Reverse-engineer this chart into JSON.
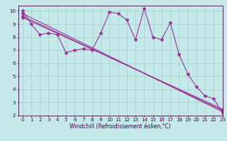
{
  "line_color": "#993399",
  "bg_color": "#c5e8e8",
  "grid_color": "#a0cccc",
  "xlabel": "Windchill (Refroidissement éolien,°C)",
  "xlim": [
    -0.5,
    23
  ],
  "ylim": [
    2,
    10.4
  ],
  "xticks": [
    0,
    1,
    2,
    3,
    4,
    5,
    6,
    7,
    8,
    9,
    10,
    11,
    12,
    13,
    14,
    15,
    16,
    17,
    18,
    19,
    20,
    21,
    22,
    23
  ],
  "yticks": [
    2,
    3,
    4,
    5,
    6,
    7,
    8,
    9,
    10
  ],
  "series1_x": [
    0,
    1,
    2,
    3,
    4,
    5,
    6,
    7,
    8,
    9,
    10,
    11,
    12,
    13,
    14,
    15,
    16,
    17,
    18,
    19,
    20,
    21,
    22,
    23
  ],
  "series1_y": [
    10,
    9,
    8.2,
    8.3,
    8.2,
    6.8,
    7.0,
    7.1,
    7.0,
    8.3,
    9.9,
    9.8,
    9.3,
    7.8,
    10.2,
    8.0,
    7.8,
    9.1,
    6.7,
    5.2,
    4.2,
    3.5,
    3.3,
    2.2
  ],
  "trend1_x": [
    0,
    23
  ],
  "trend1_y": [
    9.8,
    2.3
  ],
  "trend2_x": [
    0,
    23
  ],
  "trend2_y": [
    9.6,
    2.4
  ],
  "trend3_x": [
    0,
    23
  ],
  "trend3_y": [
    9.5,
    2.5
  ],
  "marker": "*",
  "markersize": 3,
  "linewidth": 0.8,
  "tick_fontsize": 5.0,
  "xlabel_fontsize": 5.5
}
